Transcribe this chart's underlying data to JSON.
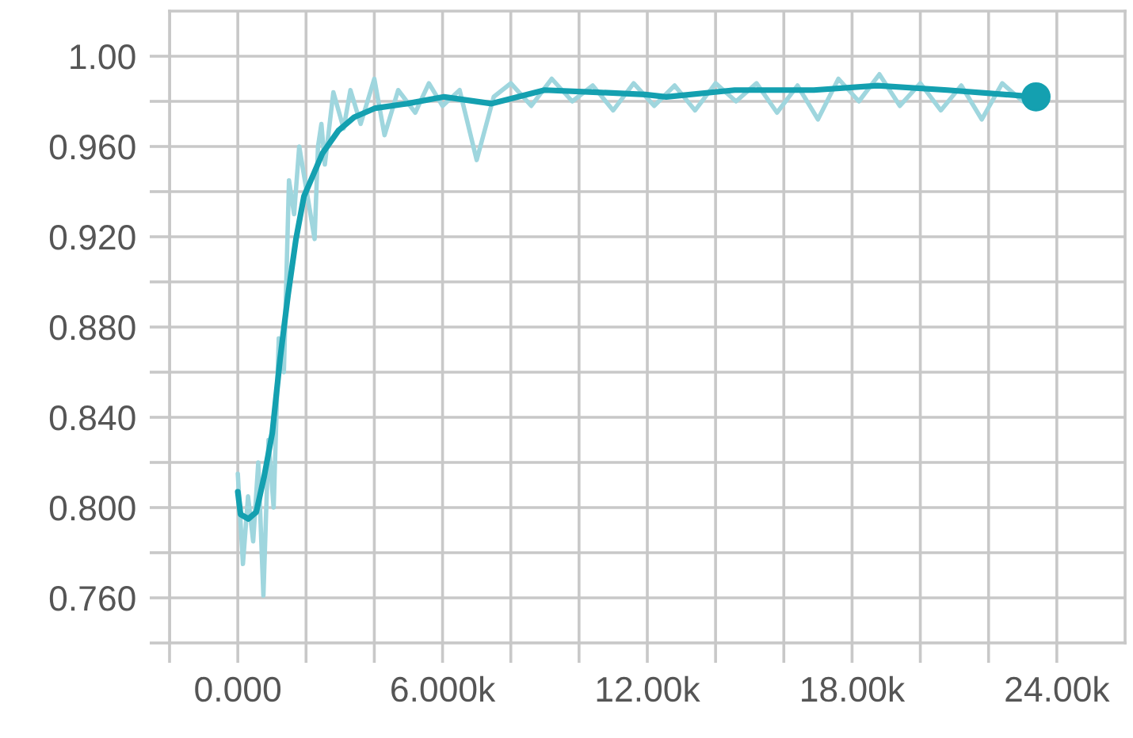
{
  "chart_data": {
    "type": "line",
    "series": [
      {
        "color": "#9fd6de",
        "x": [
          0,
          150,
          300,
          450,
          600,
          750,
          900,
          1050,
          1200,
          1350,
          1500,
          1650,
          1800,
          2250,
          2350,
          2450,
          2550,
          2800,
          3100,
          3300,
          3600,
          4000,
          4300,
          4700,
          5200,
          5600,
          6000,
          6500,
          7000,
          7500,
          8000,
          8600,
          9200,
          9800,
          10400,
          11000,
          11600,
          12200,
          12800,
          13400,
          14000,
          14600,
          15200,
          15800,
          16400,
          17000,
          17600,
          18200,
          18800,
          19400,
          20000,
          20600,
          21200,
          21800,
          22400,
          23000,
          23400
        ],
        "values": [
          0.815,
          0.775,
          0.805,
          0.785,
          0.82,
          0.761,
          0.83,
          0.8,
          0.875,
          0.86,
          0.945,
          0.93,
          0.96,
          0.919,
          0.96,
          0.97,
          0.952,
          0.984,
          0.968,
          0.985,
          0.97,
          0.99,
          0.965,
          0.985,
          0.975,
          0.988,
          0.978,
          0.985,
          0.954,
          0.982,
          0.988,
          0.978,
          0.99,
          0.98,
          0.987,
          0.976,
          0.988,
          0.978,
          0.987,
          0.976,
          0.988,
          0.98,
          0.988,
          0.975,
          0.987,
          0.972,
          0.99,
          0.98,
          0.992,
          0.978,
          0.988,
          0.976,
          0.987,
          0.972,
          0.988,
          0.98,
          0.986
        ]
      },
      {
        "color": "#14a0b0",
        "x": [
          0,
          80,
          310,
          540,
          775,
          1010,
          1240,
          1470,
          1705,
          1940,
          2170,
          2480,
          2945,
          3410,
          4030,
          4960,
          6045,
          7440,
          8990,
          10540,
          11940,
          12555,
          14560,
          16880,
          18740,
          20790,
          23390
        ],
        "values": [
          0.807,
          0.797,
          0.795,
          0.798,
          0.814,
          0.833,
          0.866,
          0.894,
          0.919,
          0.938,
          0.946,
          0.957,
          0.967,
          0.973,
          0.977,
          0.979,
          0.982,
          0.979,
          0.985,
          0.984,
          0.983,
          0.982,
          0.985,
          0.985,
          0.987,
          0.985,
          0.982
        ]
      },
      {
        "type": "scatter",
        "color": "#14a0b0",
        "x": [
          23390
        ],
        "values": [
          0.982
        ]
      }
    ],
    "xlim": [
      -2000,
      26000
    ],
    "xticks": [
      {
        "value": -2000,
        "label": null
      },
      {
        "value": 0,
        "label": "0.000"
      },
      {
        "value": 2000,
        "label": null
      },
      {
        "value": 4000,
        "label": null
      },
      {
        "value": 6000,
        "label": "6.000k"
      },
      {
        "value": 8000,
        "label": null
      },
      {
        "value": 10000,
        "label": null
      },
      {
        "value": 12000,
        "label": "12.00k"
      },
      {
        "value": 14000,
        "label": null
      },
      {
        "value": 16000,
        "label": null
      },
      {
        "value": 18000,
        "label": "18.00k"
      },
      {
        "value": 20000,
        "label": null
      },
      {
        "value": 22000,
        "label": null
      },
      {
        "value": 24000,
        "label": "24.00k"
      }
    ],
    "ylim": [
      0.74,
      1.02
    ],
    "yticks": [
      {
        "value": 0.74,
        "label": null
      },
      {
        "value": 0.76,
        "label": "0.760"
      },
      {
        "value": 0.78,
        "label": null
      },
      {
        "value": 0.8,
        "label": "0.800"
      },
      {
        "value": 0.82,
        "label": null
      },
      {
        "value": 0.84,
        "label": "0.840"
      },
      {
        "value": 0.86,
        "label": null
      },
      {
        "value": 0.88,
        "label": "0.880"
      },
      {
        "value": 0.9,
        "label": null
      },
      {
        "value": 0.92,
        "label": "0.920"
      },
      {
        "value": 0.94,
        "label": null
      },
      {
        "value": 0.96,
        "label": "0.960"
      },
      {
        "value": 0.98,
        "label": null
      },
      {
        "value": 1.0,
        "label": "1.00"
      }
    ],
    "grid": true
  }
}
